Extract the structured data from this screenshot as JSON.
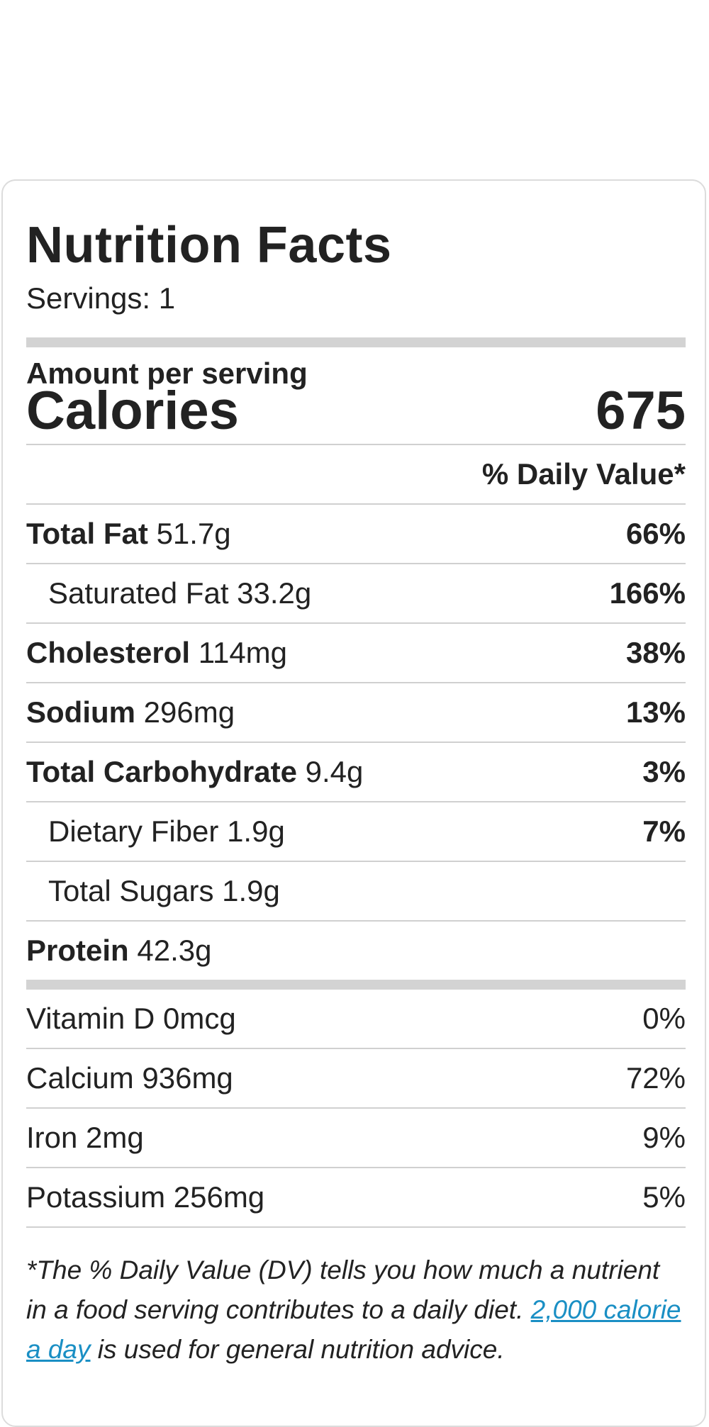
{
  "label": {
    "title": "Nutrition Facts",
    "servings": "Servings: 1",
    "amount_per_serving": "Amount per serving",
    "calories_label": "Calories",
    "calories_value": "675",
    "daily_value_header": "% Daily Value*",
    "nutrients": [
      {
        "name": "Total Fat",
        "amount": "51.7g",
        "pct": "66%"
      },
      {
        "name": "Saturated Fat",
        "amount": "33.2g",
        "pct": "166%"
      },
      {
        "name": "Cholesterol",
        "amount": "114mg",
        "pct": "38%"
      },
      {
        "name": "Sodium",
        "amount": "296mg",
        "pct": "13%"
      },
      {
        "name": "Total Carbohydrate",
        "amount": "9.4g",
        "pct": "3%"
      },
      {
        "name": "Dietary Fiber",
        "amount": "1.9g",
        "pct": "7%"
      },
      {
        "name": "Total Sugars",
        "amount": "1.9g",
        "pct": ""
      },
      {
        "name": "Protein",
        "amount": "42.3g",
        "pct": ""
      }
    ],
    "vitamins": [
      {
        "name": "Vitamin D",
        "amount": "0mcg",
        "pct": "0%"
      },
      {
        "name": "Calcium",
        "amount": "936mg",
        "pct": "72%"
      },
      {
        "name": "Iron",
        "amount": "2mg",
        "pct": "9%"
      },
      {
        "name": "Potassium",
        "amount": "256mg",
        "pct": "5%"
      }
    ],
    "footnote_text_1": "*The % Daily Value (DV) tells you how much a nutrient in a food serving contributes to a daily diet.",
    "footnote_link": "2,000 calorie a day",
    "footnote_text_2": " is used for general nutrition advice."
  },
  "colors": {
    "text": "#222222",
    "divider": "#d0d0d0",
    "thick_bar": "#d3d3d3",
    "link": "#1a8fc4",
    "card_border": "#dcdcdc"
  }
}
